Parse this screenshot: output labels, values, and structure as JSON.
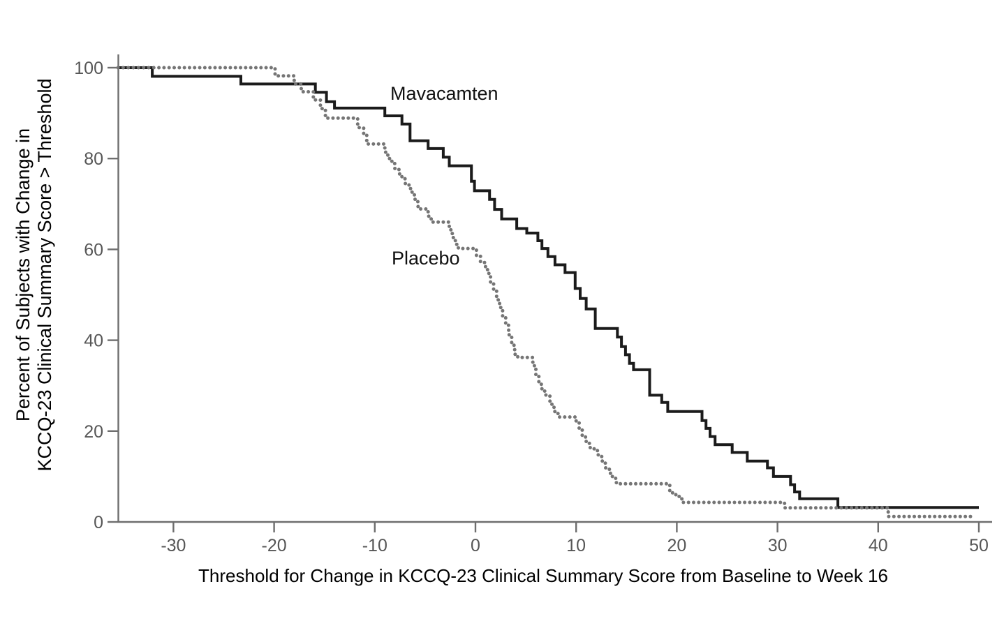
{
  "chart_data": {
    "type": "line",
    "subtype": "step-responder-curve",
    "title": "",
    "xlabel": "Threshold for Change in KCCQ-23 Clinical Summary Score from Baseline to Week 16",
    "ylabel_lines": [
      "Percent of Subjects with Change in",
      "KCCQ-23 Clinical Summary Score > Threshold"
    ],
    "xlim": [
      -35.5,
      50
    ],
    "ylim": [
      0,
      100
    ],
    "x_tick_values": [
      -30,
      -20,
      -10,
      0,
      10,
      20,
      30,
      40,
      50
    ],
    "x_tick_labels": [
      "-30",
      "-20",
      "-10",
      "0",
      "10",
      "20",
      "30",
      "40",
      "50"
    ],
    "y_tick_values": [
      0,
      20,
      40,
      60,
      80,
      100
    ],
    "y_tick_labels": [
      "0",
      "20",
      "40",
      "60",
      "80",
      "100"
    ],
    "grid": false,
    "legend_position": "labels-next-to-curves",
    "series": [
      {
        "name": "Mavacamten",
        "line_style": "solid",
        "color": "#1b1b1b",
        "points": [
          [
            -35.5,
            100
          ],
          [
            -32.1,
            98.1
          ],
          [
            -23.3,
            96.4
          ],
          [
            -15.9,
            94.6
          ],
          [
            -14.8,
            92.5
          ],
          [
            -14.0,
            91.1
          ],
          [
            -9.0,
            89.4
          ],
          [
            -7.3,
            87.6
          ],
          [
            -6.5,
            83.9
          ],
          [
            -4.7,
            82.2
          ],
          [
            -3.2,
            80.3
          ],
          [
            -2.6,
            78.4
          ],
          [
            -0.4,
            75.0
          ],
          [
            -0.1,
            72.9
          ],
          [
            1.4,
            71.0
          ],
          [
            1.9,
            68.8
          ],
          [
            2.6,
            66.7
          ],
          [
            4.1,
            64.6
          ],
          [
            5.1,
            63.6
          ],
          [
            6.2,
            61.9
          ],
          [
            6.6,
            60.2
          ],
          [
            7.2,
            58.4
          ],
          [
            7.9,
            56.6
          ],
          [
            8.9,
            54.9
          ],
          [
            9.9,
            51.4
          ],
          [
            10.4,
            49.2
          ],
          [
            11.0,
            46.9
          ],
          [
            11.9,
            42.6
          ],
          [
            14.1,
            40.7
          ],
          [
            14.5,
            38.6
          ],
          [
            14.9,
            36.8
          ],
          [
            15.3,
            34.9
          ],
          [
            15.7,
            33.5
          ],
          [
            17.3,
            27.9
          ],
          [
            18.5,
            26.3
          ],
          [
            19.1,
            24.3
          ],
          [
            22.5,
            22.3
          ],
          [
            22.9,
            20.6
          ],
          [
            23.3,
            18.8
          ],
          [
            23.8,
            17.0
          ],
          [
            25.5,
            15.3
          ],
          [
            27.0,
            13.4
          ],
          [
            29.0,
            11.9
          ],
          [
            29.6,
            10.0
          ],
          [
            31.3,
            8.2
          ],
          [
            31.7,
            6.6
          ],
          [
            32.2,
            5.1
          ],
          [
            36.0,
            3.2
          ],
          [
            50.0,
            3.2
          ]
        ]
      },
      {
        "name": "Placebo",
        "line_style": "dotted",
        "color": "#757575",
        "points": [
          [
            -35.5,
            100
          ],
          [
            -19.9,
            98.2
          ],
          [
            -18.0,
            96.4
          ],
          [
            -17.3,
            94.7
          ],
          [
            -16.1,
            92.9
          ],
          [
            -15.4,
            91.0
          ],
          [
            -14.9,
            88.9
          ],
          [
            -11.7,
            86.8
          ],
          [
            -11.1,
            85.3
          ],
          [
            -10.8,
            83.2
          ],
          [
            -9.0,
            81.4
          ],
          [
            -8.7,
            80.0
          ],
          [
            -8.3,
            78.9
          ],
          [
            -8.0,
            77.8
          ],
          [
            -7.6,
            76.6
          ],
          [
            -7.3,
            75.7
          ],
          [
            -7.0,
            74.5
          ],
          [
            -6.6,
            73.4
          ],
          [
            -6.3,
            72.0
          ],
          [
            -6.0,
            70.5
          ],
          [
            -5.7,
            68.9
          ],
          [
            -4.7,
            67.3
          ],
          [
            -4.4,
            66.0
          ],
          [
            -2.6,
            64.3
          ],
          [
            -2.3,
            62.6
          ],
          [
            -2.0,
            61.1
          ],
          [
            -1.7,
            60.2
          ],
          [
            0.1,
            58.7
          ],
          [
            0.5,
            57.3
          ],
          [
            0.9,
            56.2
          ],
          [
            1.2,
            54.7
          ],
          [
            1.5,
            52.8
          ],
          [
            1.8,
            50.8
          ],
          [
            2.1,
            48.9
          ],
          [
            2.4,
            47.2
          ],
          [
            2.7,
            45.3
          ],
          [
            3.0,
            43.3
          ],
          [
            3.3,
            41.2
          ],
          [
            3.6,
            38.9
          ],
          [
            3.9,
            36.9
          ],
          [
            4.2,
            36.2
          ],
          [
            5.7,
            34.4
          ],
          [
            6.0,
            32.3
          ],
          [
            6.3,
            30.3
          ],
          [
            6.6,
            28.8
          ],
          [
            7.0,
            27.7
          ],
          [
            7.4,
            25.9
          ],
          [
            7.8,
            24.3
          ],
          [
            8.2,
            23.1
          ],
          [
            10.0,
            21.8
          ],
          [
            10.3,
            20.3
          ],
          [
            10.6,
            18.7
          ],
          [
            11.0,
            17.3
          ],
          [
            11.4,
            16.1
          ],
          [
            11.8,
            15.7
          ],
          [
            12.2,
            14.4
          ],
          [
            12.6,
            13.1
          ],
          [
            12.9,
            11.9
          ],
          [
            13.3,
            10.7
          ],
          [
            13.6,
            9.6
          ],
          [
            14.0,
            8.4
          ],
          [
            19.3,
            6.4
          ],
          [
            19.9,
            5.6
          ],
          [
            20.5,
            4.3
          ],
          [
            30.7,
            3.1
          ],
          [
            41.0,
            1.2
          ],
          [
            49.4,
            1.2
          ]
        ]
      }
    ]
  },
  "colors": {
    "background": "#ffffff",
    "axis": "#6e6e6e",
    "tick_label": "#565656",
    "axis_title": "#000000",
    "series_label": "#111111",
    "solid_line": "#1b1b1b",
    "dotted_line": "#757575"
  }
}
